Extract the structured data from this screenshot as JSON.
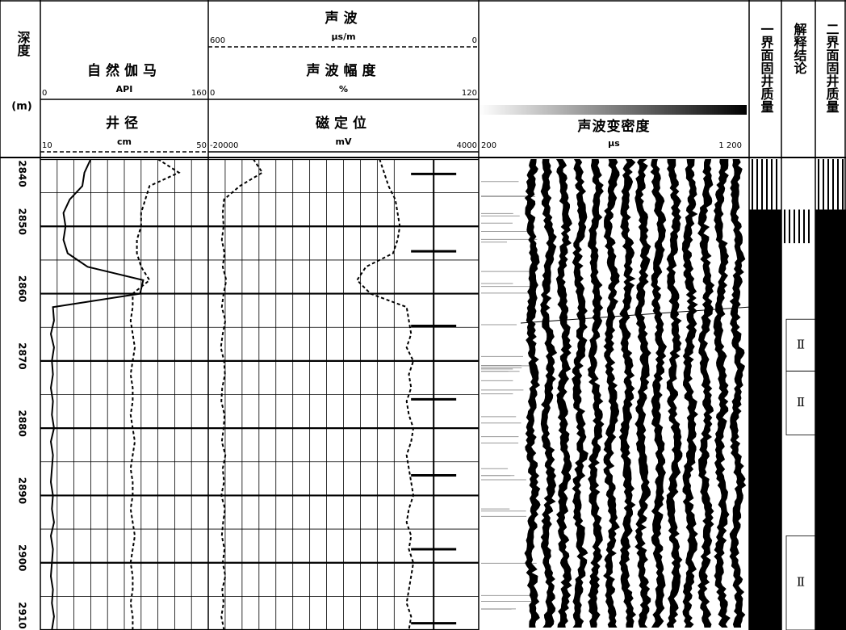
{
  "chart_data": {
    "type": "well-log",
    "depth_label": "深度",
    "depth_unit": "(m)",
    "ylim": [
      2840,
      2910
    ],
    "yticks": [
      2840,
      2850,
      2860,
      2870,
      2880,
      2890,
      2900,
      2910
    ],
    "depth": [
      2840,
      2842,
      2844,
      2846,
      2848,
      2850,
      2852,
      2854,
      2856,
      2858,
      2860,
      2862,
      2864,
      2866,
      2868,
      2870,
      2872,
      2874,
      2876,
      2878,
      2880,
      2882,
      2884,
      2886,
      2888,
      2890,
      2892,
      2894,
      2896,
      2898,
      2900,
      2902,
      2904,
      2906,
      2908,
      2910
    ],
    "tracks": [
      {
        "series": [
          {
            "name": "自然伽马",
            "unit": "API",
            "xlim": [
              0,
              160
            ],
            "xticks": [
              0,
              160
            ],
            "color": "#000000",
            "dash": false,
            "values": [
              48,
              42,
              40,
              28,
              22,
              24,
              22,
              26,
              45,
              98,
              95,
              12,
              13,
              10,
              13,
              11,
              12,
              10,
              12,
              11,
              13,
              10,
              12,
              11,
              10,
              12,
              11,
              13,
              10,
              12,
              11,
              10,
              12,
              11,
              13,
              11
            ]
          },
          {
            "name": "井径",
            "unit": "cm",
            "xlim": [
              10,
              50
            ],
            "xticks": [
              10,
              50
            ],
            "color": "#000000",
            "dash": true,
            "values": [
              38,
              43,
              36,
              35,
              34,
              34,
              33,
              33,
              34,
              36,
              32,
              32,
              31.5,
              32,
              32.5,
              32,
              31.5,
              32,
              32,
              31.5,
              32,
              32.5,
              32,
              31.5,
              32,
              32,
              31.5,
              32,
              32.5,
              32,
              31.5,
              32,
              32,
              31.5,
              32,
              32
            ]
          }
        ]
      },
      {
        "series": [
          {
            "name": "声波",
            "unit": "μs/m",
            "xlim": [
              600,
              0
            ],
            "xticks": [
              600,
              0
            ],
            "color": "#000000",
            "dash": true,
            "values": [
              500,
              480,
              530,
              565,
              568,
              566,
              570,
              564,
              568,
              560,
              566,
              570,
              562,
              568,
              572,
              565,
              563,
              569,
              571,
              564,
              566,
              570,
              562,
              568,
              565,
              571,
              563,
              567,
              570,
              564,
              568,
              562,
              569,
              566,
              571,
              565
            ]
          },
          {
            "name": "声波幅度",
            "unit": "%",
            "xlim": [
              0,
              120
            ],
            "xticks": [
              0,
              120
            ],
            "color": "#000000",
            "dash": false,
            "curve_dash": true,
            "values": [
              76,
              78,
              80,
              83,
              84,
              85,
              84,
              82,
              70,
              66,
              72,
              88,
              89,
              90,
              88,
              91,
              89,
              90,
              88,
              89,
              91,
              90,
              88,
              89,
              90,
              91,
              89,
              88,
              90,
              89,
              91,
              90,
              89,
              88,
              90,
              89
            ]
          },
          {
            "name": "磁定位",
            "unit": "mV",
            "xlim": [
              -20000,
              4000
            ],
            "xticks": [
              -20000,
              4000
            ],
            "color": "#000000",
            "dash": false,
            "values": [
              0,
              0,
              0,
              0,
              0,
              0,
              0,
              0,
              0,
              0,
              0,
              0,
              0,
              0,
              0,
              0,
              0,
              0,
              0,
              0,
              0,
              0,
              0,
              0,
              0,
              0,
              0,
              0,
              0,
              0,
              0,
              0,
              0,
              0,
              0,
              0
            ],
            "collars": [
              2842.2,
              2853.7,
              2864.8,
              2875.7,
              2887,
              2898,
              2909
            ]
          }
        ]
      },
      {
        "series": [],
        "vdl": {
          "name": "声波变密度",
          "unit": "μs",
          "xlim": [
            200,
            1200
          ],
          "xticks": [
            200,
            {
              "value": 1200,
              "label": "1 200"
            }
          ]
        }
      }
    ],
    "columns": [
      {
        "name": "一界面固井质量",
        "zones": [
          {
            "top": 2840,
            "bottom": 2847.5,
            "fill": "striped"
          },
          {
            "top": 2847.5,
            "bottom": 2910,
            "fill": "black"
          }
        ],
        "intervals": []
      },
      {
        "name": "解释结论",
        "zones": [
          {
            "top": 2847.5,
            "bottom": 2852.5,
            "fill": "striped"
          }
        ],
        "intervals": [
          {
            "top": 2863.8,
            "bottom": 2871.5,
            "label": "Ⅱ"
          },
          {
            "top": 2871.5,
            "bottom": 2881,
            "label": "Ⅱ"
          },
          {
            "top": 2896,
            "bottom": 2910,
            "label": "Ⅱ"
          }
        ]
      },
      {
        "name": "二界面固井质量",
        "zones": [
          {
            "top": 2840,
            "bottom": 2847.5,
            "fill": "striped"
          },
          {
            "top": 2847.5,
            "bottom": 2910,
            "fill": "black"
          }
        ],
        "intervals": []
      }
    ]
  }
}
